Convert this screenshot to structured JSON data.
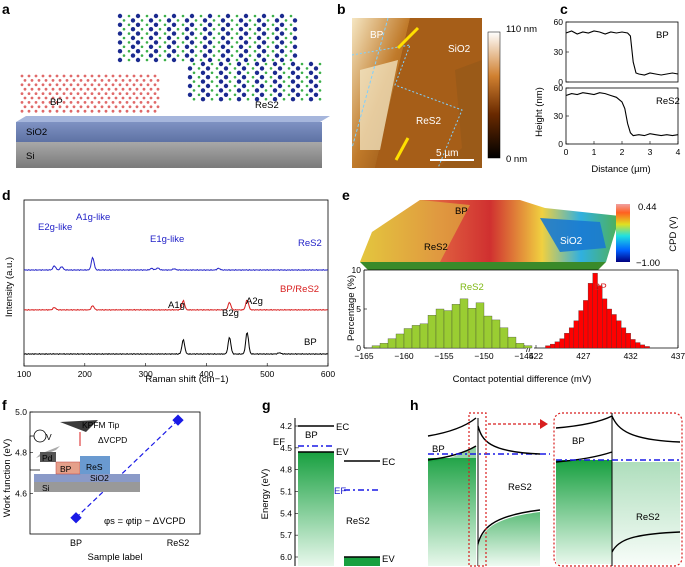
{
  "figure": {
    "panel_labels": [
      "a",
      "b",
      "c",
      "d",
      "e",
      "f",
      "g",
      "h"
    ]
  },
  "panel_a": {
    "labels": {
      "bp": "BP",
      "res2": "ReS2",
      "sio2": "SiO2",
      "si": "Si"
    }
  },
  "panel_b": {
    "labels": {
      "bp": "BP",
      "sio2": "SiO2",
      "res2": "ReS2",
      "scale": "5 µm"
    },
    "colorbar": {
      "max": "110 nm",
      "min": "0 nm"
    }
  },
  "panel_c": {
    "ylabel": "Height (nm)",
    "xlabel": "Distance (µm)",
    "colors": {
      "line": "#000000"
    },
    "chart_data": [
      {
        "type": "line",
        "title": "BP",
        "ylim": [
          0,
          60
        ],
        "yticks": [
          0,
          30,
          60
        ],
        "xlim": [
          0,
          4
        ],
        "xticks": [
          0,
          1,
          2,
          3,
          4
        ],
        "x": [
          0,
          0.2,
          0.4,
          0.6,
          0.8,
          1.0,
          1.2,
          1.4,
          1.6,
          1.8,
          2.0,
          2.2,
          2.3,
          2.4,
          2.5,
          2.6,
          2.8,
          3.0,
          3.2,
          3.4,
          3.6,
          3.8,
          4.0
        ],
        "y": [
          49,
          51,
          48,
          50,
          49,
          51,
          50,
          48,
          50,
          49,
          50,
          49,
          46,
          20,
          9,
          8,
          7,
          9,
          8,
          7,
          8,
          9,
          8
        ]
      },
      {
        "type": "line",
        "title": "ReS2",
        "ylim": [
          0,
          60
        ],
        "yticks": [
          0,
          30,
          60
        ],
        "xlim": [
          0,
          4
        ],
        "xticks": [
          0,
          1,
          2,
          3,
          4
        ],
        "x": [
          0,
          0.2,
          0.4,
          0.6,
          0.8,
          1.0,
          1.2,
          1.4,
          1.6,
          1.8,
          2.0,
          2.1,
          2.2,
          2.3,
          2.4,
          2.6,
          2.8,
          3.0,
          3.2,
          3.4,
          3.6,
          3.8,
          4.0
        ],
        "y": [
          52,
          54,
          53,
          55,
          54,
          53,
          55,
          54,
          52,
          50,
          45,
          38,
          22,
          12,
          9,
          10,
          9,
          11,
          10,
          9,
          10,
          9,
          10
        ]
      }
    ]
  },
  "panel_d": {
    "ylabel": "Intensity (a.u.)",
    "xlabel": "Raman shift (cm−1)",
    "annotations": {
      "e2g": "E2g-like",
      "a1g": "A1g-like",
      "e1g": "E1g-like",
      "ag1": "A1g",
      "b2g": "B2g",
      "ag2": "A2g"
    },
    "colors": {
      "res2": "#2323c8",
      "bpres2": "#d81e1e",
      "bp": "#000000"
    },
    "chart_data": {
      "type": "line",
      "xlim": [
        100,
        600
      ],
      "xticks": [
        100,
        200,
        300,
        400,
        500,
        600
      ],
      "series": [
        {
          "name": "ReS2",
          "peaks": [
            [
              150,
              10
            ],
            [
              162,
              8
            ],
            [
              213,
              30
            ],
            [
              310,
              4
            ],
            [
              320,
              5
            ],
            [
              347,
              3
            ],
            [
              420,
              4
            ]
          ],
          "offset": 200,
          "color": "#2323c8"
        },
        {
          "name": "BP/ReS2",
          "peaks": [
            [
              150,
              6
            ],
            [
              213,
              10
            ],
            [
              362,
              22
            ],
            [
              438,
              18
            ],
            [
              467,
              24
            ]
          ],
          "offset": 105,
          "color": "#d81e1e"
        },
        {
          "name": "BP",
          "peaks": [
            [
              362,
              34
            ],
            [
              438,
              40
            ],
            [
              467,
              52
            ],
            [
              520,
              3
            ]
          ],
          "offset": 0,
          "color": "#000000"
        }
      ]
    }
  },
  "panel_e": {
    "map_labels": {
      "bp": "BP",
      "res2": "ReS2",
      "sio2": "SiO2"
    },
    "colorbar": {
      "max": "0.44",
      "min": "−1.00",
      "label": "CPD (V)"
    },
    "ylabel": "Percentage (%)",
    "xlabel": "Contact potential difference (mV)",
    "colors": {
      "res2": "#9acd32",
      "bp": "#ff0000"
    },
    "chart_data": {
      "type": "bar",
      "ylim": [
        0,
        10
      ],
      "yticks": [
        0,
        5,
        10
      ],
      "series": [
        {
          "name": "ReS2",
          "xlim": [
            -165,
            -145
          ],
          "xticks": [
            -165,
            -160,
            -155,
            -150,
            -145
          ],
          "bin_start": -164,
          "bin_width": 1,
          "values": [
            0.3,
            0.6,
            1.2,
            1.8,
            2.5,
            2.9,
            3.1,
            4.2,
            5.0,
            4.8,
            5.6,
            6.3,
            5.1,
            5.8,
            4.1,
            3.6,
            2.6,
            1.4,
            0.6,
            0.3
          ]
        },
        {
          "name": "BP",
          "xlim": [
            422,
            437
          ],
          "xticks": [
            422,
            427,
            432,
            437
          ],
          "bin_start": 423,
          "bin_width": 0.5,
          "values": [
            0.3,
            0.5,
            0.8,
            1.2,
            1.9,
            2.6,
            3.5,
            4.8,
            6.1,
            8.3,
            9.6,
            8.0,
            6.3,
            5.0,
            4.3,
            3.5,
            2.6,
            1.9,
            1.1,
            0.7,
            0.4,
            0.2
          ]
        }
      ]
    }
  },
  "panel_f": {
    "ylabel": "Work function (eV)",
    "xlabel": "Sample label",
    "labels": {
      "kpfm": "KPFM Tip",
      "dv": "ΔVCPD",
      "v": "V",
      "pd": "Pd",
      "bp": "BP",
      "res2": "ReS",
      "sio2": "SiO2",
      "si": "Si",
      "equation": "φs = φtip − ΔVCPD"
    },
    "colors": {
      "line": "#1a1ae6"
    },
    "chart_data": {
      "type": "scatter",
      "categories": [
        "BP",
        "ReS2"
      ],
      "values": [
        4.48,
        4.96
      ],
      "ylim": [
        4.4,
        5.0
      ],
      "yticks": [
        4.6,
        4.8,
        5.0
      ]
    }
  },
  "panel_g": {
    "ylabel": "Energy (eV)",
    "yticks": [
      "4.2",
      "4.5",
      "4.8",
      "5.1",
      "5.4",
      "5.7",
      "6.0"
    ],
    "labels": {
      "bp": "BP",
      "res2": "ReS2",
      "ec": "EC",
      "ev": "EV",
      "ef": "EF"
    }
  },
  "panel_h": {
    "labels": {
      "bp": "BP",
      "res2": "ReS2"
    }
  }
}
